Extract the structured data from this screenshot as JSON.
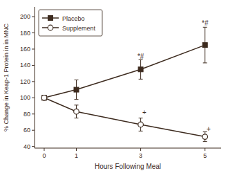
{
  "chart_data": {
    "type": "line",
    "xlabel": "Hours Following Meal",
    "ylabel": "% Change in Keap-1 Protein in in MNC",
    "x": [
      0,
      1,
      3,
      5
    ],
    "xlim": [
      -0.3,
      5.5
    ],
    "xticks": [
      0,
      1,
      3,
      5
    ],
    "ylim": [
      38,
      212
    ],
    "yticks": [
      40,
      60,
      80,
      100,
      120,
      140,
      160,
      180,
      200
    ],
    "grid": false,
    "legend": "upper left",
    "color": "#3d2b1f",
    "series": [
      {
        "name": "Placebo",
        "color": "#3d2b1f",
        "marker": "square",
        "values": [
          100,
          110,
          135,
          165
        ],
        "errors": [
          0,
          12,
          12,
          22
        ]
      },
      {
        "name": "Supplement",
        "color": "#3d2b1f",
        "marker": "open-circle",
        "values": [
          100,
          83,
          67,
          52
        ],
        "errors": [
          0,
          8,
          8,
          6
        ]
      }
    ],
    "annotations": [
      {
        "x": 3,
        "y": 147,
        "text": "*#",
        "series": 0
      },
      {
        "x": 5,
        "y": 188,
        "text": "*#",
        "series": 0
      },
      {
        "x": 3.05,
        "y": 78,
        "text": "+",
        "series": 1
      },
      {
        "x": 5.05,
        "y": 58,
        "text": "+",
        "series": 1
      }
    ]
  }
}
